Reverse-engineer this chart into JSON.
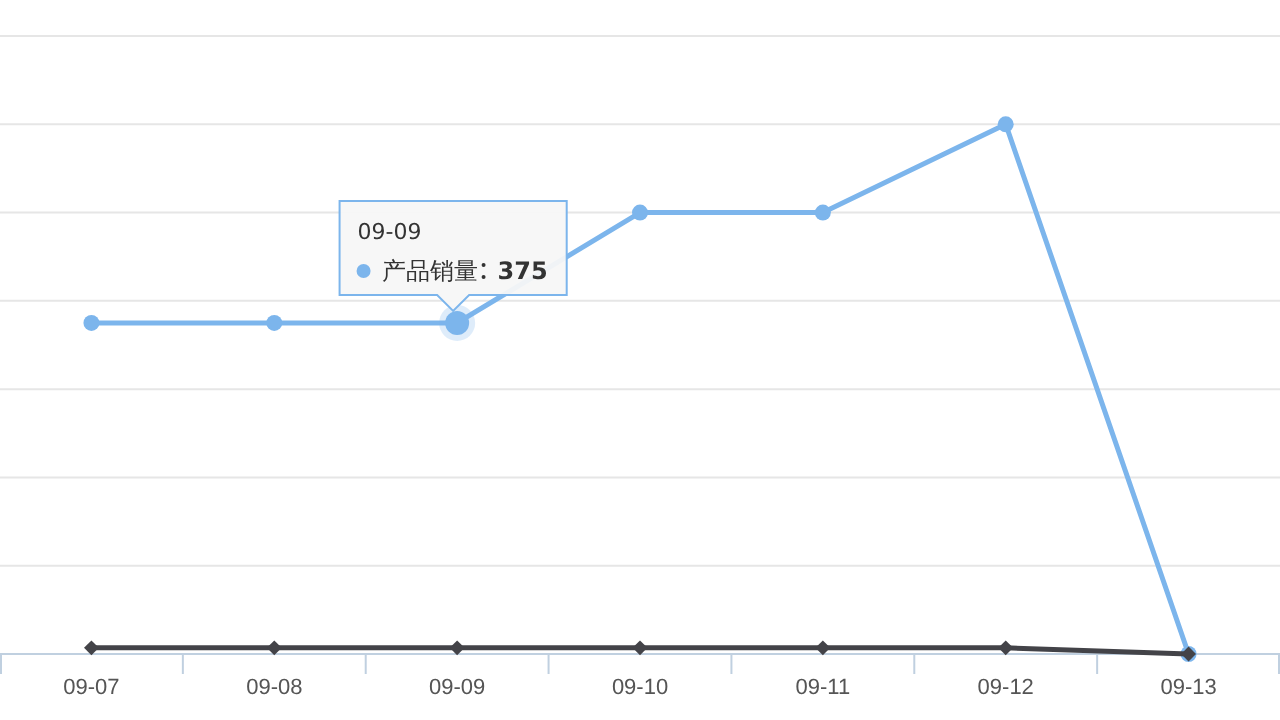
{
  "chart_data": {
    "type": "line",
    "categories": [
      "09-07",
      "09-08",
      "09-09",
      "09-10",
      "09-11",
      "09-12",
      "09-13"
    ],
    "ylim": [
      0,
      700
    ],
    "yticks": [
      {
        "value": 0,
        "label": null
      },
      {
        "value": 100,
        "label": null
      },
      {
        "value": 200,
        "label": null
      },
      {
        "value": 300,
        "label": null
      },
      {
        "value": 400,
        "label": null
      },
      {
        "value": 500,
        "label": null
      },
      {
        "value": 600,
        "label": null
      },
      {
        "value": 700,
        "label": null
      }
    ],
    "grid": "y",
    "tick_labels": "x",
    "series": [
      {
        "name": "产品销量",
        "color": "#7cb5ec",
        "marker": "circle",
        "values": [
          375,
          375,
          375,
          500,
          500,
          600,
          0
        ],
        "value_labels": [
          null,
          null,
          "375",
          null,
          null,
          null,
          null
        ]
      },
      {
        "color": "#434348",
        "marker": "diamond",
        "values": [
          7,
          7,
          7,
          7,
          7,
          7,
          0
        ]
      }
    ]
  }
}
